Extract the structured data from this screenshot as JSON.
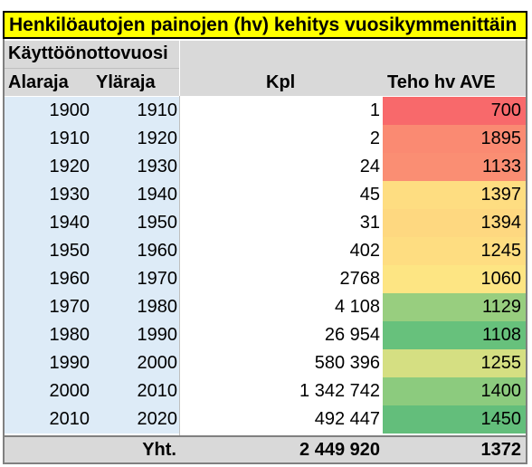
{
  "title": "Henkilöautojen painojen (hv) kehitys vuosikymmenittäin",
  "header": {
    "group_label": "Käyttöönottovuosi",
    "col_low": "Alaraja",
    "col_high": "Yläraja",
    "col_kpl": "Kpl",
    "col_teho": "Teho hv AVE"
  },
  "rows": [
    {
      "low": "1900",
      "high": "1910",
      "kpl": "1",
      "teho": "700",
      "teho_color": "#f8696b"
    },
    {
      "low": "1910",
      "high": "1920",
      "kpl": "2",
      "teho": "1895",
      "teho_color": "#fa8a72"
    },
    {
      "low": "1920",
      "high": "1930",
      "kpl": "24",
      "teho": "1133",
      "teho_color": "#fa8e73"
    },
    {
      "low": "1930",
      "high": "1940",
      "kpl": "45",
      "teho": "1397",
      "teho_color": "#fedd81"
    },
    {
      "low": "1940",
      "high": "1950",
      "kpl": "31",
      "teho": "1394",
      "teho_color": "#fed880"
    },
    {
      "low": "1950",
      "high": "1960",
      "kpl": "402",
      "teho": "1245",
      "teho_color": "#fedd81"
    },
    {
      "low": "1960",
      "high": "1970",
      "kpl": "2768",
      "teho": "1060",
      "teho_color": "#fde583"
    },
    {
      "low": "1970",
      "high": "1980",
      "kpl": "4 108",
      "teho": "1129",
      "teho_color": "#98ce7f"
    },
    {
      "low": "1980",
      "high": "1990",
      "kpl": "26 954",
      "teho": "1108",
      "teho_color": "#67c17c"
    },
    {
      "low": "1990",
      "high": "2000",
      "kpl": "580 396",
      "teho": "1255",
      "teho_color": "#d5df82"
    },
    {
      "low": "2000",
      "high": "2010",
      "kpl": "1 342 742",
      "teho": "1400",
      "teho_color": "#8ccb7e"
    },
    {
      "low": "2010",
      "high": "2020",
      "kpl": "492 447",
      "teho": "1450",
      "teho_color": "#63be7b"
    }
  ],
  "total": {
    "label": "Yht.",
    "kpl": "2 449 920",
    "teho": "1372"
  },
  "colors": {
    "title_bg": "#ffff00",
    "header_bg": "#d9d9d9",
    "year_bg": "#ddebf7"
  }
}
